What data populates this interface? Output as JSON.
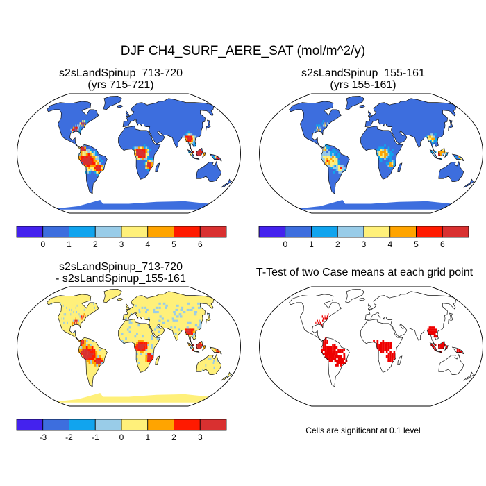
{
  "main_title": "DJF CH4_SURF_AERE_SAT (mol/m^2/y)",
  "panels": {
    "top_left": {
      "title_line1": "s2sLandSpinup_713-720",
      "title_line2": "(yrs 715-721)"
    },
    "top_right": {
      "title_line1": "s2sLandSpinup_155-161",
      "title_line2": "(yrs 155-161)"
    },
    "bottom_left": {
      "title_line1": "s2sLandSpinup_713-720",
      "title_line2": "- s2sLandSpinup_155-161"
    },
    "bottom_right": {
      "title_line1": "T-Test of two Case means at each grid point"
    }
  },
  "colorbars": {
    "absolute": {
      "colors": [
        "#4422ee",
        "#3d6ede",
        "#11a4ee",
        "#99cce8",
        "#fff07a",
        "#ffa400",
        "#ff1a00",
        "#d93030"
      ],
      "labels": [
        "0",
        "1",
        "2",
        "3",
        "4",
        "5",
        "6"
      ]
    },
    "difference": {
      "colors": [
        "#4422ee",
        "#3d6ede",
        "#11a4ee",
        "#99cce8",
        "#fff07a",
        "#ffa400",
        "#ff1a00",
        "#d93030"
      ],
      "labels": [
        "-3",
        "-2",
        "-1",
        "0",
        "1",
        "2",
        "3"
      ]
    }
  },
  "significance_note": "Cells are significant at 0.1 level",
  "colors": {
    "ocean": "#ffffff",
    "coastline": "#111111",
    "significant": "#ee0000"
  }
}
